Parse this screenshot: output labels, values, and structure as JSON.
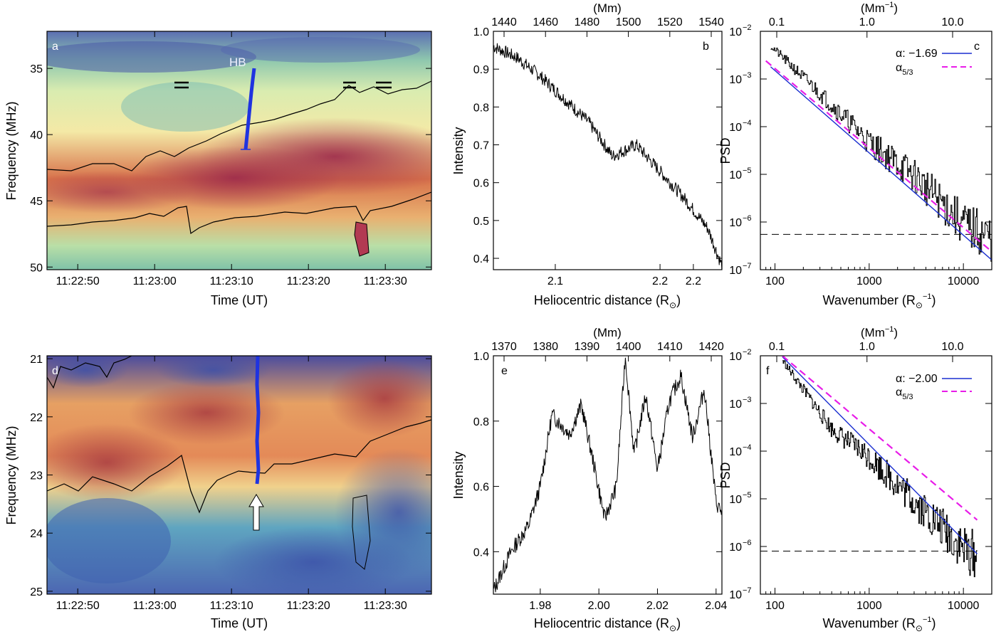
{
  "figure": {
    "panels": [
      {
        "id": "a",
        "letter": "a",
        "kind": "spectrogram",
        "xlabel": "Time (UT)",
        "ylabel": "Frequency (MHz)",
        "xticks": [
          "11:22:50",
          "11:23:00",
          "11:23:10",
          "11:23:20",
          "11:23:30"
        ],
        "yticks": [
          "35",
          "40",
          "45",
          "50"
        ],
        "annotation": "HB",
        "colors": {
          "low": "#4a3f9e",
          "mid": "#f6f4b9",
          "high": "#9e2a4d",
          "burst": "#2b3bd8"
        }
      },
      {
        "id": "b",
        "letter": "b",
        "kind": "line",
        "xlabel": "Heliocentric distance (R",
        "xlabel_sub": "⊙",
        "xlabel_end": ")",
        "ylabel": "Intensity",
        "top_axis_label": "(Mm)",
        "xticks": [
          "2.1",
          "2.2",
          "2.2"
        ],
        "top_ticks": [
          "1440",
          "1460",
          "1480",
          "1500",
          "1520",
          "1540"
        ],
        "yticks": [
          "0.4",
          "0.5",
          "0.6",
          "0.7",
          "0.8",
          "0.9",
          "1.0"
        ]
      },
      {
        "id": "c",
        "letter": "c",
        "kind": "psd",
        "xlabel": "Wavenumber (R",
        "xlabel_sub": "⊙",
        "xlabel_sup": "−1",
        "xlabel_end": ")",
        "ylabel": "PSD",
        "top_axis_label": "(Mm",
        "top_axis_sup": "−1",
        "top_axis_end": ")",
        "xticks": [
          "100",
          "1000",
          "10000"
        ],
        "top_ticks": [
          "0.1",
          "1.0",
          "10.0"
        ],
        "yticks_exp": [
          "−7",
          "−6",
          "−5",
          "−4",
          "−3",
          "−2"
        ],
        "legend": [
          {
            "label": "α: −1.69",
            "color": "#1a2fd0",
            "dash": false
          },
          {
            "label": "α",
            "sub": "5/3",
            "color": "#e81ce8",
            "dash": true
          }
        ]
      },
      {
        "id": "d",
        "letter": "d",
        "kind": "spectrogram",
        "xlabel": "Time (UT)",
        "ylabel": "Frequency (MHz)",
        "xticks": [
          "11:22:50",
          "11:23:00",
          "11:23:10",
          "11:23:20",
          "11:23:30"
        ],
        "yticks": [
          "21",
          "22",
          "23",
          "24",
          "25"
        ]
      },
      {
        "id": "e",
        "letter": "e",
        "kind": "line",
        "xlabel": "Heliocentric distance (R",
        "xlabel_sub": "⊙",
        "xlabel_end": ")",
        "ylabel": "Intensity",
        "top_axis_label": "(Mm)",
        "xticks": [
          "1.98",
          "2.00",
          "2.02",
          "2.04"
        ],
        "top_ticks": [
          "1370",
          "1380",
          "1390",
          "1400",
          "1410",
          "1420"
        ],
        "yticks": [
          "0.4",
          "0.6",
          "0.8",
          "1.0"
        ]
      },
      {
        "id": "f",
        "letter": "f",
        "kind": "psd",
        "xlabel": "Wavenumber (R",
        "xlabel_sub": "⊙",
        "xlabel_sup": "−1",
        "xlabel_end": ")",
        "ylabel": "PSD",
        "top_axis_label": "(Mm",
        "top_axis_sup": "−1",
        "top_axis_end": ")",
        "xticks": [
          "100",
          "1000",
          "10000"
        ],
        "top_ticks": [
          "0.1",
          "1.0",
          "10.0"
        ],
        "yticks_exp": [
          "−7",
          "−6",
          "−5",
          "−4",
          "−3",
          "−2"
        ],
        "legend": [
          {
            "label": "α: −2.00",
            "color": "#1a2fd0",
            "dash": false
          },
          {
            "label": "α",
            "sub": "5/3",
            "color": "#e81ce8",
            "dash": true
          }
        ]
      }
    ]
  },
  "chart_data": [
    {
      "type": "heatmap",
      "panel": "a",
      "xlabel": "Time (UT)",
      "ylabel": "Frequency (MHz)",
      "xlim": [
        "11:22:46",
        "11:23:36"
      ],
      "ylim": [
        50.2,
        32.2
      ],
      "x_ticks": [
        "11:22:50",
        "11:23:00",
        "11:23:10",
        "11:23:20",
        "11:23:30"
      ],
      "y_ticks": [
        35,
        40,
        45,
        50
      ],
      "annotation": "HB",
      "burst_track": {
        "x": [
          "11:23:12.2",
          "11:23:14.0"
        ],
        "y": [
          40.8,
          34.6
        ]
      }
    },
    {
      "type": "line",
      "panel": "b",
      "xlabel": "Heliocentric distance (R⊙)",
      "ylabel": "Intensity",
      "top_axis": "(Mm)",
      "xlim": [
        2.035,
        2.275
      ],
      "ylim": [
        0.37,
        1.0
      ],
      "series": [
        {
          "x": [
            2.035,
            2.06,
            2.085,
            2.11,
            2.135,
            2.16,
            2.185,
            2.21,
            2.235,
            2.26,
            2.275
          ],
          "y": [
            0.96,
            0.93,
            0.88,
            0.82,
            0.76,
            0.67,
            0.7,
            0.63,
            0.56,
            0.48,
            0.38
          ]
        }
      ]
    },
    {
      "type": "line",
      "panel": "c",
      "log_x": true,
      "log_y": true,
      "xlabel": "Wavenumber (R⊙⁻¹)",
      "ylabel": "PSD",
      "xlim": [
        70,
        20000
      ],
      "ylim": [
        1e-07,
        0.01
      ],
      "series": [
        {
          "name": "α: −1.69",
          "x": [
            90,
            20000
          ],
          "y": [
            0.0018,
            1.6e-07
          ]
        },
        {
          "name": "α 5/3",
          "x": [
            80,
            20000
          ],
          "y": [
            0.0024,
            2.4e-07
          ]
        },
        {
          "x": [
            90,
            400,
            1000,
            3000,
            10000,
            20000
          ],
          "y": [
            0.005,
            0.0003,
            5e-05,
            1e-05,
            1e-06,
            5e-07
          ]
        }
      ],
      "noise_level": 5.5e-07
    },
    {
      "type": "heatmap",
      "panel": "d",
      "xlabel": "Time (UT)",
      "ylabel": "Frequency (MHz)",
      "xlim": [
        "11:22:46",
        "11:23:36"
      ],
      "ylim": [
        25.05,
        20.95
      ],
      "x_ticks": [
        "11:22:50",
        "11:23:00",
        "11:23:10",
        "11:23:20",
        "11:23:30"
      ],
      "y_ticks": [
        21,
        22,
        23,
        24,
        25
      ]
    },
    {
      "type": "line",
      "panel": "e",
      "xlabel": "Heliocentric distance (R⊙)",
      "ylabel": "Intensity",
      "top_axis": "(Mm)",
      "xlim": [
        1.964,
        2.042
      ],
      "ylim": [
        0.27,
        1.0
      ],
      "series": [
        {
          "x": [
            1.964,
            1.97,
            1.976,
            1.98,
            1.984,
            1.99,
            1.994,
            1.998,
            2.002,
            2.006,
            2.009,
            2.012,
            2.016,
            2.02,
            2.024,
            2.028,
            2.032,
            2.036,
            2.04,
            2.042
          ],
          "y": [
            0.28,
            0.4,
            0.48,
            0.6,
            0.82,
            0.76,
            0.85,
            0.68,
            0.5,
            0.6,
            1.0,
            0.7,
            0.88,
            0.65,
            0.86,
            0.94,
            0.75,
            0.9,
            0.55,
            0.52
          ]
        }
      ]
    },
    {
      "type": "line",
      "panel": "f",
      "log_x": true,
      "log_y": true,
      "xlabel": "Wavenumber (R⊙⁻¹)",
      "ylabel": "PSD",
      "xlim": [
        70,
        20000
      ],
      "ylim": [
        1e-07,
        0.01
      ],
      "series": [
        {
          "name": "α: −2.00",
          "x": [
            120,
            14000
          ],
          "y": [
            0.0095,
            7e-07
          ]
        },
        {
          "name": "α 5/3",
          "x": [
            120,
            14000
          ],
          "y": [
            0.01,
            3.6e-06
          ]
        },
        {
          "x": [
            120,
            400,
            1000,
            3000,
            10000,
            14000
          ],
          "y": [
            0.008,
            0.0003,
            8e-05,
            1e-05,
            1e-06,
            7e-07
          ]
        }
      ],
      "noise_level": 8e-07
    }
  ]
}
